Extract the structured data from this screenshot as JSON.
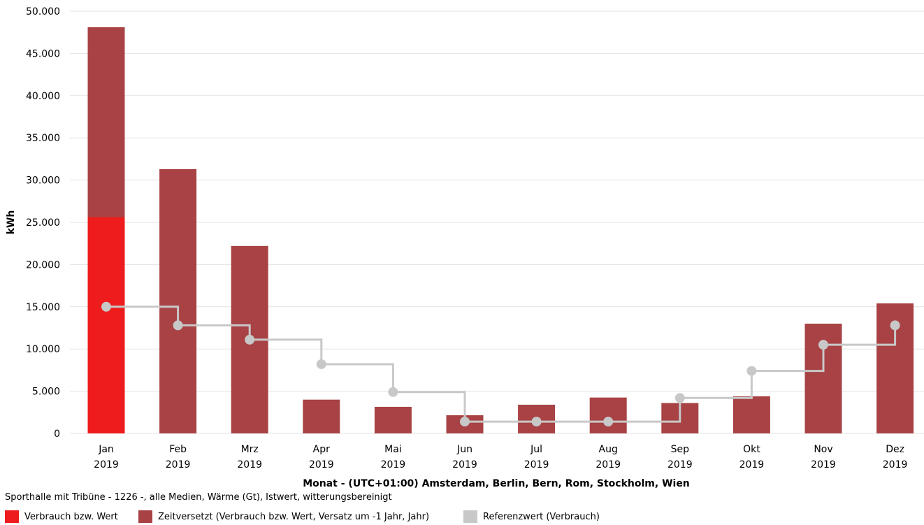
{
  "chart_data": {
    "type": "bar",
    "ylabel": "kWh",
    "xlabel": "Monat - (UTC+01:00) Amsterdam, Berlin, Bern, Rom, Stockholm, Wien",
    "ylim": [
      0,
      50000
    ],
    "yticks": [
      0,
      5000,
      10000,
      15000,
      20000,
      25000,
      30000,
      35000,
      40000,
      45000,
      50000
    ],
    "ytick_labels": [
      "0",
      "5.000",
      "10.000",
      "15.000",
      "20.000",
      "25.000",
      "30.000",
      "35.000",
      "40.000",
      "45.000",
      "50.000"
    ],
    "categories": [
      "Jan",
      "Feb",
      "Mrz",
      "Apr",
      "Mai",
      "Jun",
      "Jul",
      "Aug",
      "Sep",
      "Okt",
      "Nov",
      "Dez"
    ],
    "category_years": [
      "2019",
      "2019",
      "2019",
      "2019",
      "2019",
      "2019",
      "2019",
      "2019",
      "2019",
      "2019",
      "2019",
      "2019"
    ],
    "grid": true,
    "legend_position": "bottom-left",
    "series": [
      {
        "name": "Verbrauch bzw. Wert",
        "kind": "bar",
        "color": "#ee1c1c",
        "values": [
          25600,
          null,
          null,
          null,
          null,
          null,
          null,
          null,
          null,
          null,
          null,
          null
        ]
      },
      {
        "name": "Zeitversetzt (Verbrauch bzw. Wert, Versatz um -1 Jahr, Jahr)",
        "kind": "bar",
        "color": "#a84244",
        "values": [
          48100,
          31300,
          22200,
          4000,
          3150,
          2150,
          3400,
          4250,
          3600,
          4400,
          13000,
          15400
        ]
      },
      {
        "name": "Referenzwert (Verbrauch)",
        "kind": "step-line",
        "color": "#c8c8c8",
        "values": [
          15000,
          12800,
          11100,
          8200,
          4900,
          1400,
          1400,
          1400,
          4200,
          7400,
          10500,
          12800
        ]
      }
    ],
    "caption": "Sporthalle mit Tribüne - 1226 -, alle Medien, Wärme (Gt), Istwert, witterungsbereinigt"
  }
}
